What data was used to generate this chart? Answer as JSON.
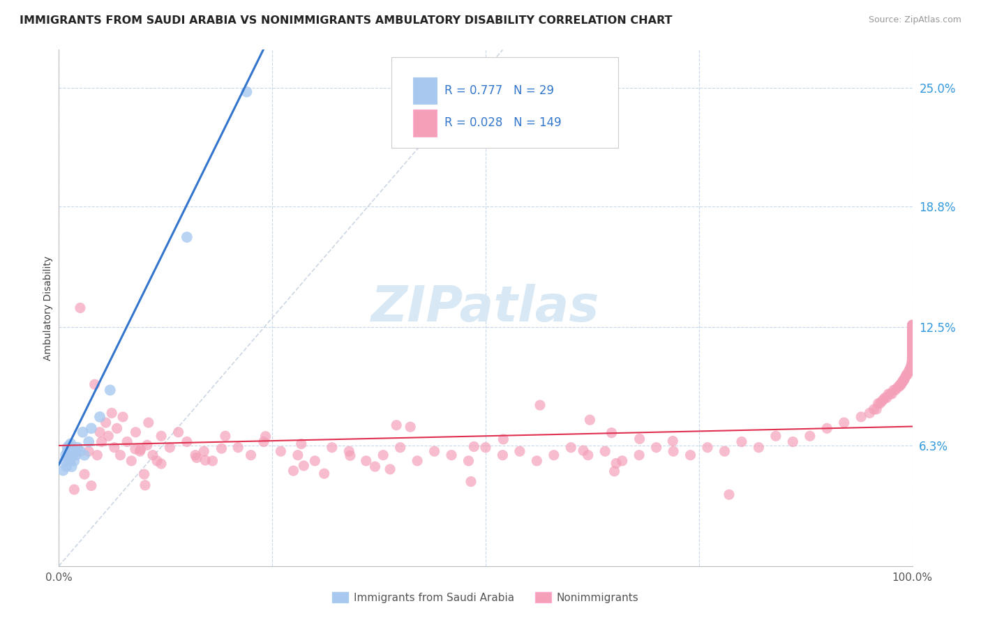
{
  "title": "IMMIGRANTS FROM SAUDI ARABIA VS NONIMMIGRANTS AMBULATORY DISABILITY CORRELATION CHART",
  "source": "Source: ZipAtlas.com",
  "ylabel": "Ambulatory Disability",
  "legend_label_1": "Immigrants from Saudi Arabia",
  "legend_label_2": "Nonimmigrants",
  "R1": 0.777,
  "N1": 29,
  "R2": 0.028,
  "N2": 149,
  "color1": "#A8C8F0",
  "color2": "#F4A0B8",
  "line1_color": "#3375CC",
  "line2_color": "#E03050",
  "diag_color": "#C0CCDD",
  "background_color": "#FFFFFF",
  "grid_color": "#C8D8EA",
  "watermark_color": "#D8E8F4",
  "xmin": 0.0,
  "xmax": 1.0,
  "ymin": 0.0,
  "ymax": 0.27,
  "ytick_vals": [
    0.063,
    0.125,
    0.188,
    0.25
  ],
  "ytick_labels": [
    "6.3%",
    "12.5%",
    "18.8%",
    "25.0%"
  ],
  "imm_x": [
    0.005,
    0.007,
    0.008,
    0.009,
    0.01,
    0.01,
    0.011,
    0.012,
    0.012,
    0.013,
    0.013,
    0.014,
    0.015,
    0.015,
    0.016,
    0.017,
    0.018,
    0.019,
    0.02,
    0.022,
    0.025,
    0.028,
    0.03,
    0.035,
    0.038,
    0.048,
    0.06,
    0.15,
    0.22
  ],
  "imm_y": [
    0.05,
    0.055,
    0.058,
    0.052,
    0.06,
    0.062,
    0.056,
    0.058,
    0.063,
    0.055,
    0.06,
    0.064,
    0.052,
    0.057,
    0.059,
    0.061,
    0.055,
    0.06,
    0.058,
    0.062,
    0.06,
    0.07,
    0.058,
    0.065,
    0.072,
    0.078,
    0.092,
    0.172,
    0.248
  ],
  "ni_x_low": [
    0.018,
    0.025,
    0.03,
    0.035,
    0.038,
    0.042,
    0.045,
    0.048,
    0.05,
    0.055,
    0.058,
    0.062,
    0.065,
    0.068,
    0.072,
    0.075,
    0.08,
    0.085,
    0.09,
    0.095,
    0.1,
    0.105,
    0.11,
    0.115,
    0.12,
    0.13,
    0.14,
    0.15,
    0.16,
    0.17,
    0.18,
    0.195,
    0.21,
    0.225,
    0.24,
    0.26,
    0.28,
    0.3,
    0.32,
    0.34,
    0.36,
    0.38,
    0.4,
    0.42,
    0.44,
    0.46,
    0.48,
    0.5,
    0.52,
    0.54,
    0.56,
    0.58,
    0.6,
    0.62,
    0.64,
    0.66,
    0.68,
    0.7,
    0.72,
    0.74,
    0.76,
    0.78,
    0.8,
    0.82,
    0.84,
    0.86,
    0.88,
    0.9,
    0.92,
    0.94
  ],
  "ni_y_low": [
    0.04,
    0.135,
    0.048,
    0.06,
    0.042,
    0.095,
    0.058,
    0.07,
    0.065,
    0.075,
    0.068,
    0.08,
    0.062,
    0.072,
    0.058,
    0.078,
    0.065,
    0.055,
    0.07,
    0.06,
    0.048,
    0.075,
    0.058,
    0.055,
    0.068,
    0.062,
    0.07,
    0.065,
    0.058,
    0.06,
    0.055,
    0.068,
    0.062,
    0.058,
    0.065,
    0.06,
    0.058,
    0.055,
    0.062,
    0.06,
    0.055,
    0.058,
    0.062,
    0.055,
    0.06,
    0.058,
    0.055,
    0.062,
    0.058,
    0.06,
    0.055,
    0.058,
    0.062,
    0.058,
    0.06,
    0.055,
    0.058,
    0.062,
    0.06,
    0.058,
    0.062,
    0.06,
    0.065,
    0.062,
    0.068,
    0.065,
    0.068,
    0.072,
    0.075,
    0.078
  ],
  "ni_x_high": [
    0.95,
    0.955,
    0.958,
    0.96,
    0.962,
    0.964,
    0.966,
    0.968,
    0.97,
    0.972,
    0.974,
    0.976,
    0.978,
    0.98,
    0.982,
    0.984,
    0.985,
    0.986,
    0.987,
    0.988,
    0.989,
    0.99,
    0.991,
    0.992,
    0.993,
    0.994,
    0.995,
    0.996,
    0.997,
    0.998,
    0.999,
    0.9992,
    0.9994,
    0.9996,
    0.9998,
    0.9999,
    0.99992,
    0.99994,
    0.99996,
    0.99998,
    0.99999,
    0.999992,
    0.999994,
    0.999996,
    0.999998,
    0.999999,
    0.9999992,
    0.9999994,
    0.9999996,
    0.9999998,
    0.9999999,
    0.99999992,
    0.99999994,
    0.99999996,
    0.99999998,
    0.99999999,
    0.999999992,
    0.999999994,
    0.999999996,
    0.999999998,
    0.999999999,
    0.9999999992,
    0.9999999994,
    0.9999999996,
    0.9999999998,
    0.9999999999,
    0.99999999992,
    0.99999999994,
    0.99999999996,
    0.99999999998,
    0.99999999999,
    0.999999999992,
    0.999999999994,
    0.999999999996,
    0.999999999998,
    0.999999999999,
    0.9999999999992,
    0.9999999999994,
    0.9999999999996
  ],
  "ni_y_high": [
    0.08,
    0.082,
    0.082,
    0.085,
    0.085,
    0.086,
    0.087,
    0.088,
    0.088,
    0.09,
    0.09,
    0.09,
    0.092,
    0.092,
    0.093,
    0.094,
    0.094,
    0.095,
    0.095,
    0.096,
    0.097,
    0.097,
    0.098,
    0.099,
    0.1,
    0.1,
    0.101,
    0.102,
    0.103,
    0.104,
    0.105,
    0.105,
    0.106,
    0.107,
    0.108,
    0.109,
    0.109,
    0.11,
    0.11,
    0.111,
    0.111,
    0.112,
    0.112,
    0.113,
    0.113,
    0.114,
    0.114,
    0.115,
    0.115,
    0.116,
    0.116,
    0.116,
    0.117,
    0.117,
    0.117,
    0.118,
    0.118,
    0.118,
    0.119,
    0.119,
    0.12,
    0.12,
    0.12,
    0.121,
    0.122,
    0.122,
    0.122,
    0.123,
    0.123,
    0.124,
    0.124,
    0.124,
    0.125,
    0.125,
    0.125,
    0.125,
    0.126,
    0.126,
    0.126
  ]
}
